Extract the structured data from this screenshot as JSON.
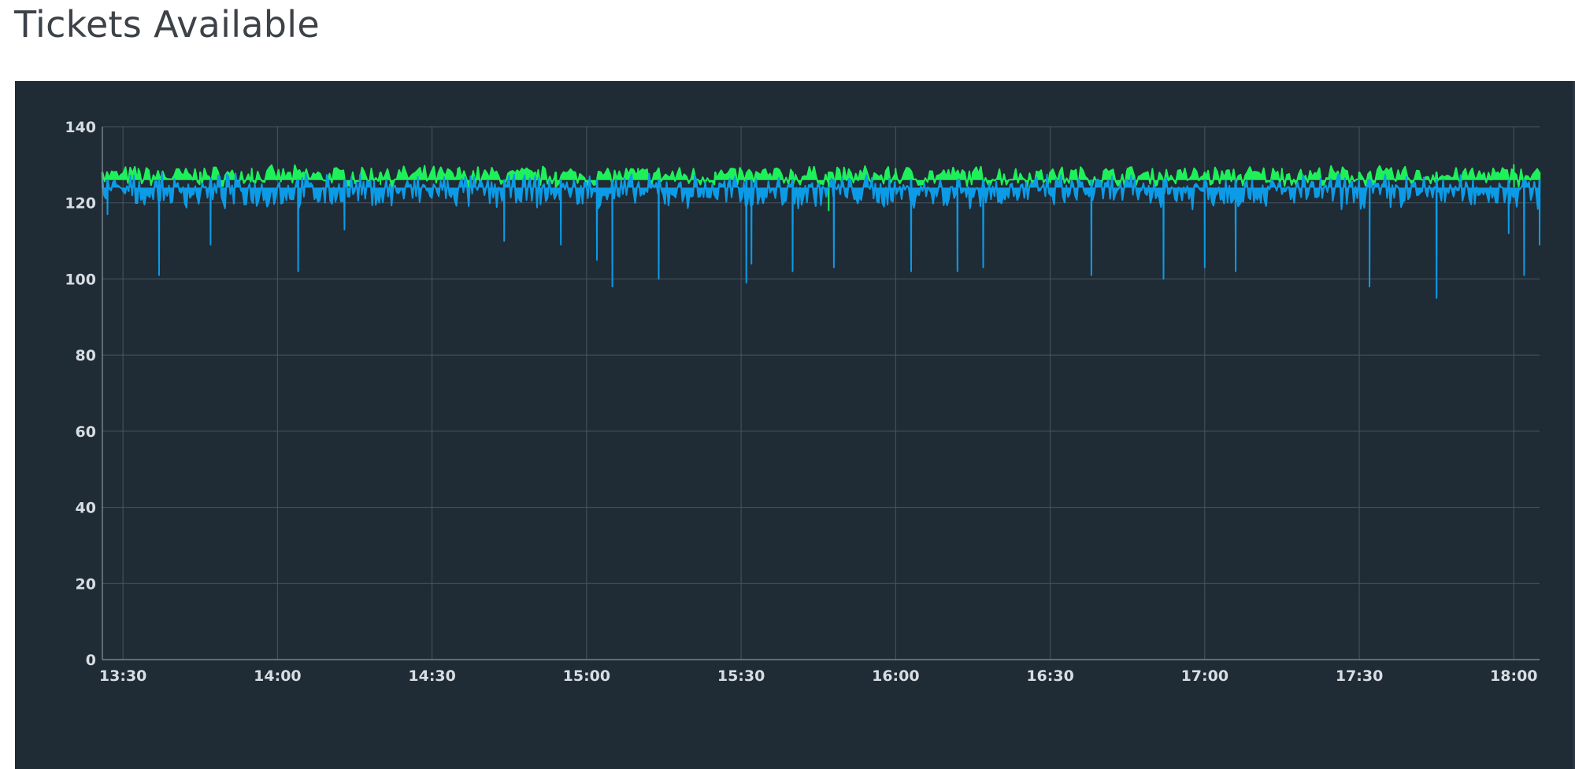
{
  "page": {
    "title": "Tickets Available"
  },
  "colors": {
    "panel_background": "#1f2b35",
    "grid": "#4a5560",
    "axis": "#8a949d",
    "tick_text": "#d7dde3",
    "series_upper": "#1ef05a",
    "series_lower": "#0c9be6"
  },
  "chart_data": {
    "type": "area",
    "title": "Tickets Available",
    "xlabel": "",
    "ylabel": "",
    "ylim": [
      0,
      140
    ],
    "xlim": [
      "13:26",
      "18:05"
    ],
    "grid": true,
    "legend": "none",
    "y_ticks": [
      "0",
      "20",
      "40",
      "60",
      "80",
      "100",
      "120",
      "140"
    ],
    "x_ticks": [
      "13:30",
      "14:00",
      "14:30",
      "15:00",
      "15:30",
      "16:00",
      "16:30",
      "17:00",
      "17:30",
      "18:00"
    ],
    "series": [
      {
        "color": "#1ef05a",
        "typical_range": [
          124,
          130
        ],
        "x": [
          "13:26",
          "13:33",
          "13:45",
          "13:55",
          "14:05",
          "14:20",
          "14:35",
          "14:50",
          "14:54",
          "15:10",
          "15:25",
          "15:40",
          "15:47",
          "16:00",
          "16:15",
          "16:30",
          "16:45",
          "17:00",
          "17:15",
          "17:30",
          "17:45",
          "18:00",
          "18:05"
        ],
        "y": [
          128,
          129,
          128,
          129,
          128,
          128,
          129,
          128,
          124,
          129,
          128,
          128,
          118,
          129,
          128,
          128,
          129,
          128,
          129,
          128,
          128,
          130,
          122
        ]
      },
      {
        "color": "#0c9be6",
        "typical_range": [
          118,
          128
        ],
        "x": [
          "13:26",
          "13:27",
          "13:37",
          "13:47",
          "14:04",
          "14:13",
          "14:44",
          "14:55",
          "15:02",
          "15:05",
          "15:14",
          "15:31",
          "15:32",
          "15:40",
          "15:48",
          "16:03",
          "16:12",
          "16:17",
          "16:38",
          "16:52",
          "17:00",
          "17:06",
          "17:32",
          "17:45",
          "17:59",
          "18:02",
          "18:05"
        ],
        "y": [
          124,
          117,
          101,
          109,
          102,
          113,
          110,
          109,
          105,
          98,
          100,
          99,
          104,
          102,
          103,
          102,
          102,
          103,
          101,
          100,
          103,
          102,
          98,
          95,
          112,
          101,
          109
        ]
      }
    ]
  }
}
